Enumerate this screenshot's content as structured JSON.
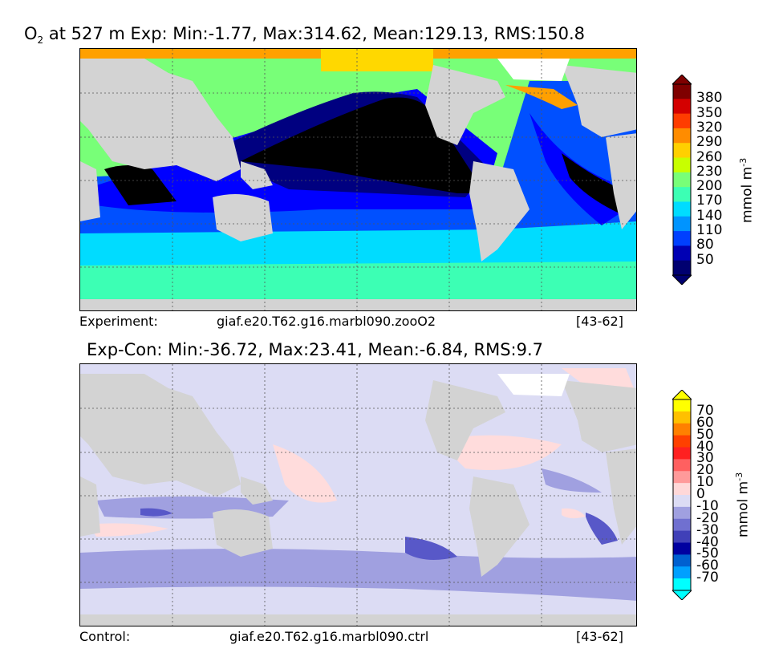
{
  "top_panel": {
    "title_var": "O",
    "title_sub": "2",
    "title_rest": " at 527 m Exp: Min:-1.77, Max:314.62, Mean:129.13, RMS:150.8",
    "caption_label": "Experiment:",
    "caption_case": "giaf.e20.T62.g16.marbl090.zooO2",
    "caption_years": "[43-62]",
    "unit": "mmol m",
    "unit_exp": "-3",
    "colorbar": {
      "ticks": [
        "380",
        "350",
        "320",
        "290",
        "260",
        "230",
        "200",
        "170",
        "140",
        "110",
        "80",
        "50"
      ],
      "colors": [
        "#7f0000",
        "#d40000",
        "#ff3c00",
        "#ff8c00",
        "#ffd000",
        "#c8ff00",
        "#78ff78",
        "#3cffb4",
        "#00dcff",
        "#0094ff",
        "#0040ff",
        "#0000b4",
        "#000070"
      ]
    }
  },
  "bottom_panel": {
    "title": "Exp-Con: Min:-36.72, Max:23.41, Mean:-6.84, RMS:9.7",
    "caption_label": "Control:",
    "caption_case": "giaf.e20.T62.g16.marbl090.ctrl",
    "caption_years": "[43-62]",
    "unit": "mmol m",
    "unit_exp": "-3",
    "colorbar": {
      "ticks": [
        "70",
        "60",
        "50",
        "40",
        "30",
        "20",
        "10",
        "0",
        "-10",
        "-20",
        "-30",
        "-40",
        "-50",
        "-60",
        "-70"
      ],
      "colors": [
        "#ffff00",
        "#ffc000",
        "#ff8000",
        "#ff4000",
        "#ff2020",
        "#ff6060",
        "#ff9a9a",
        "#ffd8d8",
        "#dcdcf4",
        "#a0a0e0",
        "#7070d0",
        "#4040b8",
        "#0000a0",
        "#0060d0",
        "#00a0ff",
        "#00ffff"
      ]
    }
  },
  "map_colors": {
    "land": "#d3d3d3",
    "experiment": {
      "black": "#000000",
      "navy": "#000080",
      "blue": "#0000ff",
      "mid": "#0050ff",
      "light": "#00a0ff",
      "cyan": "#00dcff",
      "teal": "#3cffb4",
      "green": "#78ff78",
      "orange": "#ffa000",
      "yellow": "#ffd800"
    },
    "difference": {
      "base": "#dcdcf4",
      "mid": "#a0a0e0",
      "dark": "#5858c8",
      "pink": "#ffdcdc"
    }
  }
}
